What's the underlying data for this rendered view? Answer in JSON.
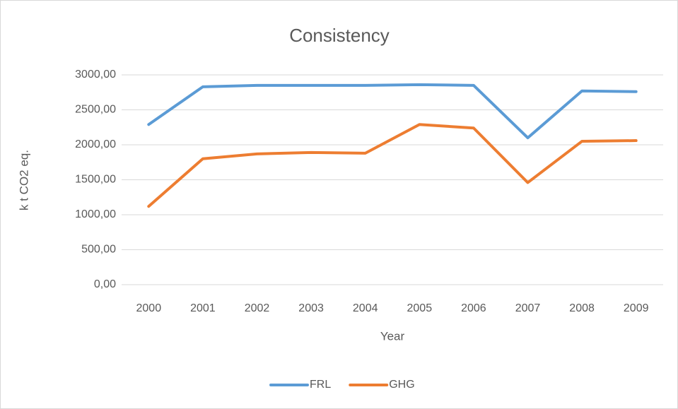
{
  "chart_data": {
    "type": "line",
    "title": "Consistency",
    "x_label": "Year",
    "y_label": "k t CO2 eq.",
    "categories": [
      "2000",
      "2001",
      "2002",
      "2003",
      "2004",
      "2005",
      "2006",
      "2007",
      "2008",
      "2009"
    ],
    "series": [
      {
        "name": "FRL",
        "color": "#5b9bd5",
        "values": [
          2290,
          2830,
          2850,
          2850,
          2850,
          2860,
          2850,
          2100,
          2770,
          2760
        ]
      },
      {
        "name": "GHG",
        "color": "#ed7d31",
        "values": [
          1120,
          1800,
          1870,
          1890,
          1880,
          2290,
          2240,
          1460,
          2050,
          2060
        ]
      }
    ],
    "ylim": [
      0,
      3000
    ],
    "yticks": [
      {
        "value": 0,
        "label": "0,00"
      },
      {
        "value": 500,
        "label": "500,00"
      },
      {
        "value": 1000,
        "label": "1000,00"
      },
      {
        "value": 1500,
        "label": "1500,00"
      },
      {
        "value": 2000,
        "label": "2000,00"
      },
      {
        "value": 2500,
        "label": "2500,00"
      },
      {
        "value": 3000,
        "label": "3000,00"
      }
    ],
    "grid": true,
    "legend": "bottom"
  }
}
